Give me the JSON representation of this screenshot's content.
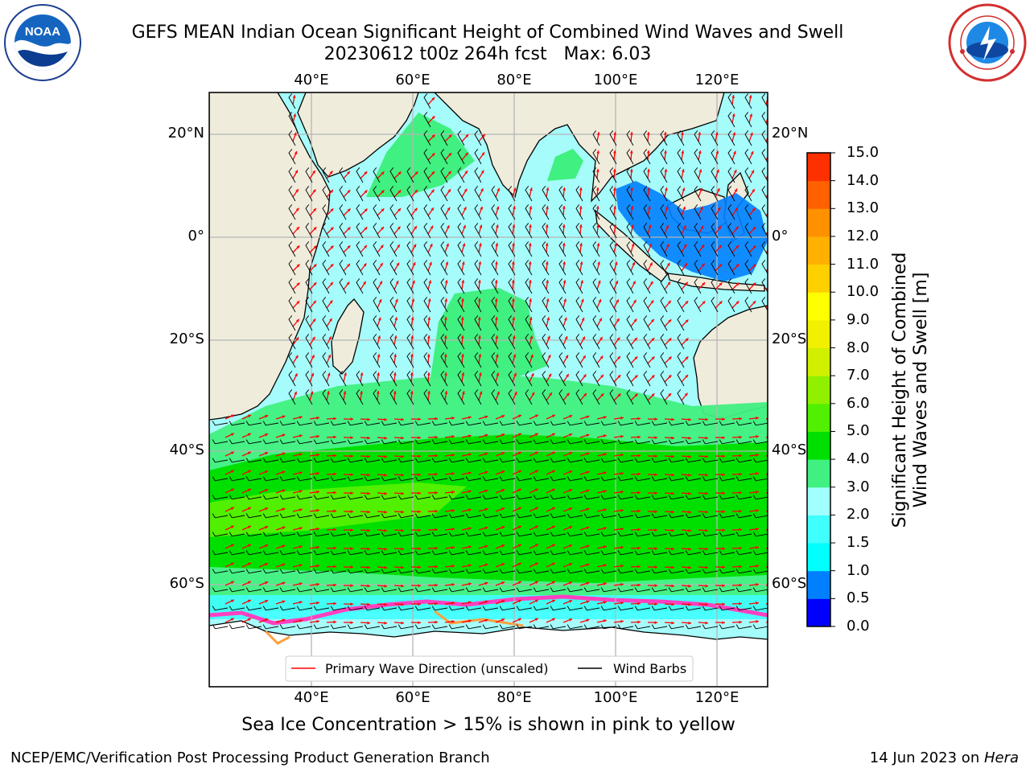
{
  "title": {
    "line1": "GEFS MEAN Indian Ocean Significant Height of Combined Wind Waves and Swell",
    "line2": "20230612 t00z 264h fcst   Max: 6.03"
  },
  "logos": {
    "noaa_text": "NOAA"
  },
  "map": {
    "lon_labels": [
      "40°E",
      "60°E",
      "80°E",
      "100°E",
      "120°E"
    ],
    "lat_labels": [
      "20°N",
      "0°",
      "20°S",
      "40°S",
      "60°S"
    ],
    "legend": {
      "wave_direction": "Primary Wave Direction (unscaled)",
      "wind_barbs": "Wind Barbs"
    },
    "colors": {
      "land": "#efecdc",
      "sea_ice": "#ff40c0",
      "wave_direction": "#ff0000",
      "wind_barbs": "#000000"
    }
  },
  "colorbar": {
    "label_line1": "Significant Height of Combined",
    "label_line2": "Wind Waves and Swell [m]",
    "ticks": [
      "15.0",
      "14.0",
      "13.0",
      "12.0",
      "11.0",
      "10.0",
      "9.0",
      "8.0",
      "7.0",
      "6.0",
      "5.0",
      "4.0",
      "3.0",
      "2.0",
      "1.5",
      "1.0",
      "0.5",
      "0.0"
    ],
    "colors": [
      "#0000ff",
      "#0080ff",
      "#00ffff",
      "#40ffff",
      "#a0ffff",
      "#40f080",
      "#00e000",
      "#50f000",
      "#90f000",
      "#d0f000",
      "#f0f000",
      "#ffff00",
      "#ffd000",
      "#ffb000",
      "#ff9000",
      "#ff6000",
      "#ff3000"
    ]
  },
  "subtitle": "Sea Ice Concentration > 15% is shown in pink to yellow",
  "footer": {
    "left": "NCEP/EMC/Verification Post Processing Product Generation Branch",
    "right_date": "14 Jun 2023 on ",
    "right_host": "Hera"
  }
}
